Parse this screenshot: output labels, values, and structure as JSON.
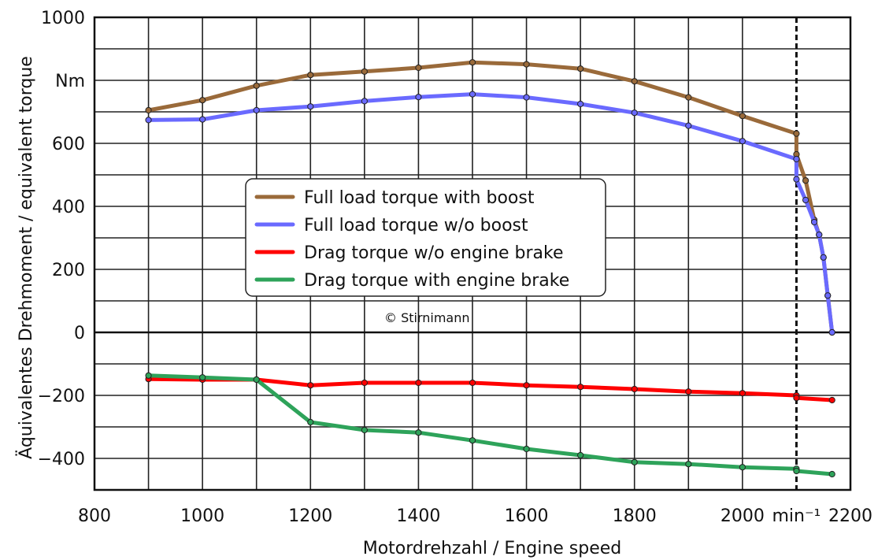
{
  "chart_data": {
    "type": "line",
    "title": "",
    "xlabel": "Motordrehzahl / Engine speed",
    "ylabel": "Äquivalentes Drehmoment / equivalent torque",
    "xlim": [
      800,
      2200
    ],
    "ylim": [
      -500,
      1000
    ],
    "x_ticks": [
      {
        "value": 800,
        "label": "800"
      },
      {
        "value": 1000,
        "label": "1000"
      },
      {
        "value": 1200,
        "label": "1200"
      },
      {
        "value": 1400,
        "label": "1400"
      },
      {
        "value": 1600,
        "label": "1600"
      },
      {
        "value": 1800,
        "label": "1800"
      },
      {
        "value": 2000,
        "label": "2000"
      },
      {
        "value": 2100,
        "label": "min⁻¹"
      },
      {
        "value": 2200,
        "label": "2200"
      }
    ],
    "y_ticks": [
      {
        "value": 1000,
        "label": "1000"
      },
      {
        "value": 800,
        "label": "Nm"
      },
      {
        "value": 600,
        "label": "600"
      },
      {
        "value": 400,
        "label": "400"
      },
      {
        "value": 200,
        "label": "200"
      },
      {
        "value": 0,
        "label": "0"
      },
      {
        "value": -200,
        "label": "−200"
      },
      {
        "value": -400,
        "label": "−400"
      }
    ],
    "grid": true,
    "vertical_marker": {
      "x": 2100,
      "style": "dashed"
    },
    "legend_position": "center",
    "annotation": "© Stirnimann",
    "series": [
      {
        "name": "Full load torque with boost",
        "color": "#9a6a3a",
        "points": [
          [
            900,
            705
          ],
          [
            1000,
            737
          ],
          [
            1100,
            783
          ],
          [
            1200,
            817
          ],
          [
            1300,
            828
          ],
          [
            1400,
            840
          ],
          [
            1500,
            857
          ],
          [
            1600,
            851
          ],
          [
            1700,
            837
          ],
          [
            1800,
            797
          ],
          [
            1900,
            746
          ],
          [
            2000,
            687
          ],
          [
            2100,
            631
          ],
          [
            2100,
            565
          ],
          [
            2117,
            482
          ],
          [
            2133,
            357
          ],
          [
            2142,
            310
          ],
          [
            2150,
            238
          ],
          [
            2158,
            117
          ],
          [
            2166,
            0
          ]
        ]
      },
      {
        "name": "Full load torque w/o boost",
        "color": "#6a6aff",
        "points": [
          [
            900,
            674
          ],
          [
            1000,
            676
          ],
          [
            1100,
            705
          ],
          [
            1200,
            717
          ],
          [
            1300,
            734
          ],
          [
            1400,
            747
          ],
          [
            1500,
            756
          ],
          [
            1600,
            746
          ],
          [
            1700,
            725
          ],
          [
            1800,
            697
          ],
          [
            1900,
            656
          ],
          [
            2000,
            607
          ],
          [
            2100,
            550
          ],
          [
            2100,
            486
          ],
          [
            2117,
            420
          ],
          [
            2133,
            350
          ],
          [
            2142,
            310
          ],
          [
            2150,
            238
          ],
          [
            2158,
            117
          ],
          [
            2166,
            0
          ]
        ]
      },
      {
        "name": "Drag torque w/o engine brake",
        "color": "#ff0000",
        "points": [
          [
            900,
            -148
          ],
          [
            1000,
            -150
          ],
          [
            1100,
            -150
          ],
          [
            1200,
            -168
          ],
          [
            1300,
            -160
          ],
          [
            1400,
            -160
          ],
          [
            1500,
            -160
          ],
          [
            1600,
            -168
          ],
          [
            1700,
            -173
          ],
          [
            1800,
            -180
          ],
          [
            1900,
            -188
          ],
          [
            2000,
            -193
          ],
          [
            2100,
            -200
          ],
          [
            2100,
            -208
          ],
          [
            2166,
            -215
          ]
        ]
      },
      {
        "name": "Drag torque with engine brake",
        "color": "#2ea35a",
        "points": [
          [
            900,
            -137
          ],
          [
            1000,
            -143
          ],
          [
            1100,
            -150
          ],
          [
            1200,
            -285
          ],
          [
            1300,
            -310
          ],
          [
            1400,
            -318
          ],
          [
            1500,
            -343
          ],
          [
            1600,
            -370
          ],
          [
            1700,
            -390
          ],
          [
            1800,
            -412
          ],
          [
            1900,
            -418
          ],
          [
            2000,
            -428
          ],
          [
            2100,
            -433
          ],
          [
            2100,
            -440
          ],
          [
            2166,
            -450
          ]
        ]
      }
    ]
  }
}
